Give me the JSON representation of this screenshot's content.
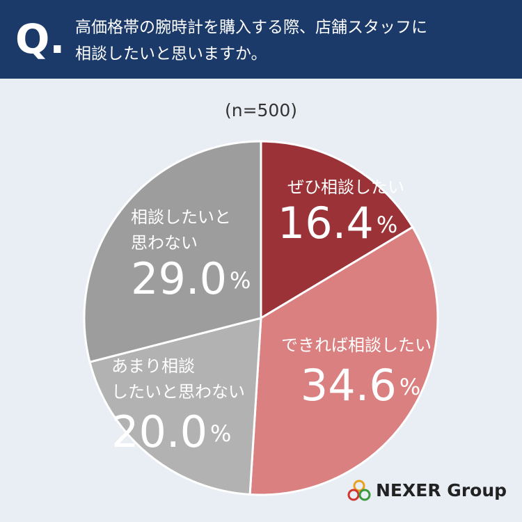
{
  "header": {
    "mark": "Q.",
    "question": [
      "高価格帯の腕時計を購入する際、店舗スタッフに",
      "相談したいと思いますか。"
    ]
  },
  "chart_data": {
    "type": "pie",
    "subtitle": "(n=500)",
    "categories": [
      "ぜひ相談したい",
      "できれば相談したい",
      "あまり相談\nしたいと思わない",
      "相談したいと\n思わない"
    ],
    "values": [
      16.4,
      34.6,
      20.0,
      29.0
    ],
    "value_labels": [
      "16.4%",
      "34.6%",
      "20.0%",
      "29.0%"
    ],
    "colors": [
      "#9b3237",
      "#da8080",
      "#b2b2b2",
      "#9d9d9d"
    ]
  },
  "logo": "NEXER Group"
}
